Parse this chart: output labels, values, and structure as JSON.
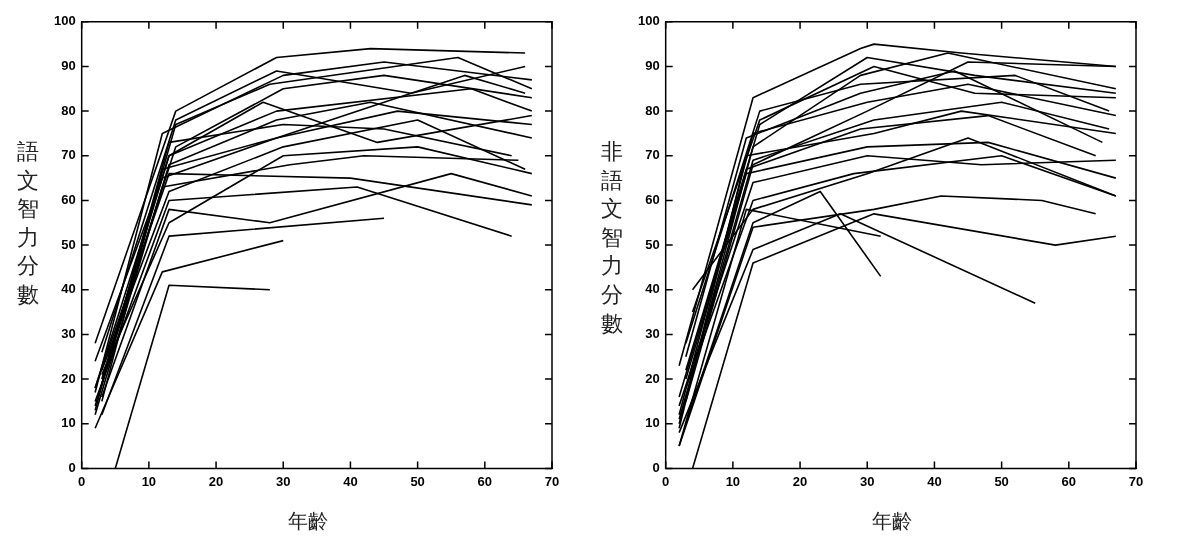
{
  "chart_data": [
    {
      "type": "line",
      "xlabel": "年齡",
      "ylabel": "語文智力分數",
      "xlim": [
        0,
        70
      ],
      "xticks": [
        0,
        10,
        20,
        30,
        40,
        50,
        60,
        70
      ],
      "ylim": [
        0,
        100
      ],
      "yticks": [
        0,
        10,
        20,
        30,
        40,
        50,
        60,
        70,
        80,
        90,
        100
      ],
      "grid": false,
      "legend": false,
      "marker": "none",
      "line_style": "solid",
      "series": [
        {
          "color": "#000000",
          "x": [
            2,
            14,
            29,
            43,
            66
          ],
          "values": [
            28,
            80,
            92,
            94,
            93
          ]
        },
        {
          "color": "#000000",
          "x": [
            5,
            13,
            28
          ],
          "values": [
            0,
            41,
            40
          ]
        },
        {
          "color": "#000000",
          "x": [
            2,
            12,
            30
          ],
          "values": [
            9,
            44,
            51
          ]
        },
        {
          "color": "#000000",
          "x": [
            3,
            13,
            45
          ],
          "values": [
            12,
            52,
            56
          ]
        },
        {
          "color": "#000000",
          "x": [
            2,
            13,
            41,
            64
          ],
          "values": [
            15,
            60,
            63,
            52
          ]
        },
        {
          "color": "#000000",
          "x": [
            2,
            13,
            40,
            67
          ],
          "values": [
            18,
            66,
            65,
            59
          ]
        },
        {
          "color": "#000000",
          "x": [
            3,
            13,
            29,
            58,
            67
          ],
          "values": [
            20,
            70,
            80,
            85,
            80
          ]
        },
        {
          "color": "#000000",
          "x": [
            2,
            12,
            30,
            45,
            67
          ],
          "values": [
            17,
            75,
            88,
            91,
            87
          ]
        },
        {
          "color": "#000000",
          "x": [
            3,
            13,
            30,
            50,
            66
          ],
          "values": [
            22,
            62,
            72,
            78,
            67
          ]
        },
        {
          "color": "#000000",
          "x": [
            2,
            13,
            29,
            43,
            67
          ],
          "values": [
            14,
            68,
            78,
            82,
            74
          ]
        },
        {
          "color": "#000000",
          "x": [
            4,
            14,
            30,
            45,
            67
          ],
          "values": [
            25,
            72,
            85,
            88,
            83
          ]
        },
        {
          "color": "#000000",
          "x": [
            3,
            13,
            28,
            55,
            67
          ],
          "values": [
            16,
            58,
            55,
            66,
            61
          ]
        },
        {
          "color": "#000000",
          "x": [
            2,
            13,
            30,
            45,
            64
          ],
          "values": [
            13,
            73,
            77,
            76,
            70
          ]
        },
        {
          "color": "#000000",
          "x": [
            3,
            14,
            28,
            56,
            67
          ],
          "values": [
            19,
            77,
            86,
            92,
            85
          ]
        },
        {
          "color": "#000000",
          "x": [
            2,
            12,
            29,
            47,
            67
          ],
          "values": [
            24,
            65,
            74,
            80,
            77
          ]
        },
        {
          "color": "#000000",
          "x": [
            3,
            13,
            30,
            50,
            67
          ],
          "values": [
            21,
            55,
            70,
            72,
            66
          ]
        },
        {
          "color": "#000000",
          "x": [
            2,
            12,
            31,
            42,
            65
          ],
          "values": [
            12,
            63,
            68,
            70,
            69
          ]
        },
        {
          "color": "#000000",
          "x": [
            3,
            14,
            29,
            49,
            66
          ],
          "values": [
            26,
            78,
            89,
            84,
            90
          ]
        },
        {
          "color": "#000000",
          "x": [
            2,
            13,
            27,
            44,
            67
          ],
          "values": [
            18,
            70,
            82,
            73,
            79
          ]
        },
        {
          "color": "#000000",
          "x": [
            3,
            12,
            29,
            57,
            66
          ],
          "values": [
            15,
            67,
            74,
            88,
            84
          ]
        }
      ]
    },
    {
      "type": "line",
      "xlabel": "年齡",
      "ylabel": "非語文智力分數",
      "xlim": [
        0,
        70
      ],
      "xticks": [
        0,
        10,
        20,
        30,
        40,
        50,
        60,
        70
      ],
      "ylim": [
        0,
        100
      ],
      "yticks": [
        0,
        10,
        20,
        30,
        40,
        50,
        60,
        70,
        80,
        90,
        100
      ],
      "grid": false,
      "legend": false,
      "marker": "none",
      "line_style": "solid",
      "series": [
        {
          "color": "#000000",
          "x": [
            2,
            13,
            29,
            31,
            44,
            67
          ],
          "values": [
            23,
            83,
            94,
            95,
            93,
            90
          ]
        },
        {
          "color": "#000000",
          "x": [
            4,
            13,
            31,
            58,
            67
          ],
          "values": [
            0,
            46,
            57,
            50,
            52
          ]
        },
        {
          "color": "#000000",
          "x": [
            2,
            13,
            26,
            55
          ],
          "values": [
            8,
            49,
            57,
            37
          ]
        },
        {
          "color": "#000000",
          "x": [
            3,
            13,
            23,
            32
          ],
          "values": [
            10,
            55,
            62,
            43
          ]
        },
        {
          "color": "#000000",
          "x": [
            2,
            13,
            31,
            41,
            56,
            64
          ],
          "values": [
            5,
            54,
            58,
            61,
            60,
            57
          ]
        },
        {
          "color": "#000000",
          "x": [
            2,
            12,
            32
          ],
          "values": [
            5,
            58,
            52
          ]
        },
        {
          "color": "#000000",
          "x": [
            3,
            13,
            30,
            45,
            67
          ],
          "values": [
            15,
            68,
            80,
            91,
            90
          ]
        },
        {
          "color": "#000000",
          "x": [
            2,
            13,
            29,
            42,
            67
          ],
          "values": [
            10,
            72,
            88,
            93,
            85
          ]
        },
        {
          "color": "#000000",
          "x": [
            3,
            12,
            30,
            48,
            67
          ],
          "values": [
            20,
            66,
            72,
            73,
            65
          ]
        },
        {
          "color": "#000000",
          "x": [
            2,
            13,
            30,
            45,
            67
          ],
          "values": [
            12,
            75,
            82,
            86,
            79
          ]
        },
        {
          "color": "#000000",
          "x": [
            4,
            14,
            31,
            46,
            67
          ],
          "values": [
            35,
            78,
            90,
            84,
            83
          ]
        },
        {
          "color": "#000000",
          "x": [
            3,
            13,
            28,
            50,
            67
          ],
          "values": [
            18,
            60,
            66,
            70,
            61
          ]
        },
        {
          "color": "#000000",
          "x": [
            2,
            12,
            31,
            44,
            67
          ],
          "values": [
            9,
            70,
            75,
            80,
            75
          ]
        },
        {
          "color": "#000000",
          "x": [
            3,
            14,
            29,
            52,
            66
          ],
          "values": [
            28,
            80,
            86,
            88,
            80
          ]
        },
        {
          "color": "#000000",
          "x": [
            2,
            13,
            30,
            47,
            67
          ],
          "values": [
            14,
            64,
            70,
            68,
            69
          ]
        },
        {
          "color": "#000000",
          "x": [
            3,
            12,
            29,
            43,
            65
          ],
          "values": [
            25,
            74,
            84,
            89,
            73
          ]
        },
        {
          "color": "#000000",
          "x": [
            2,
            13,
            31,
            50,
            66
          ],
          "values": [
            11,
            69,
            78,
            82,
            76
          ]
        },
        {
          "color": "#000000",
          "x": [
            4,
            13,
            30,
            45,
            67
          ],
          "values": [
            40,
            58,
            66,
            74,
            61
          ]
        },
        {
          "color": "#000000",
          "x": [
            3,
            12,
            29,
            48,
            64
          ],
          "values": [
            22,
            67,
            76,
            79,
            70
          ]
        },
        {
          "color": "#000000",
          "x": [
            2,
            14,
            30,
            46,
            67
          ],
          "values": [
            16,
            77,
            92,
            88,
            84
          ]
        }
      ]
    }
  ]
}
